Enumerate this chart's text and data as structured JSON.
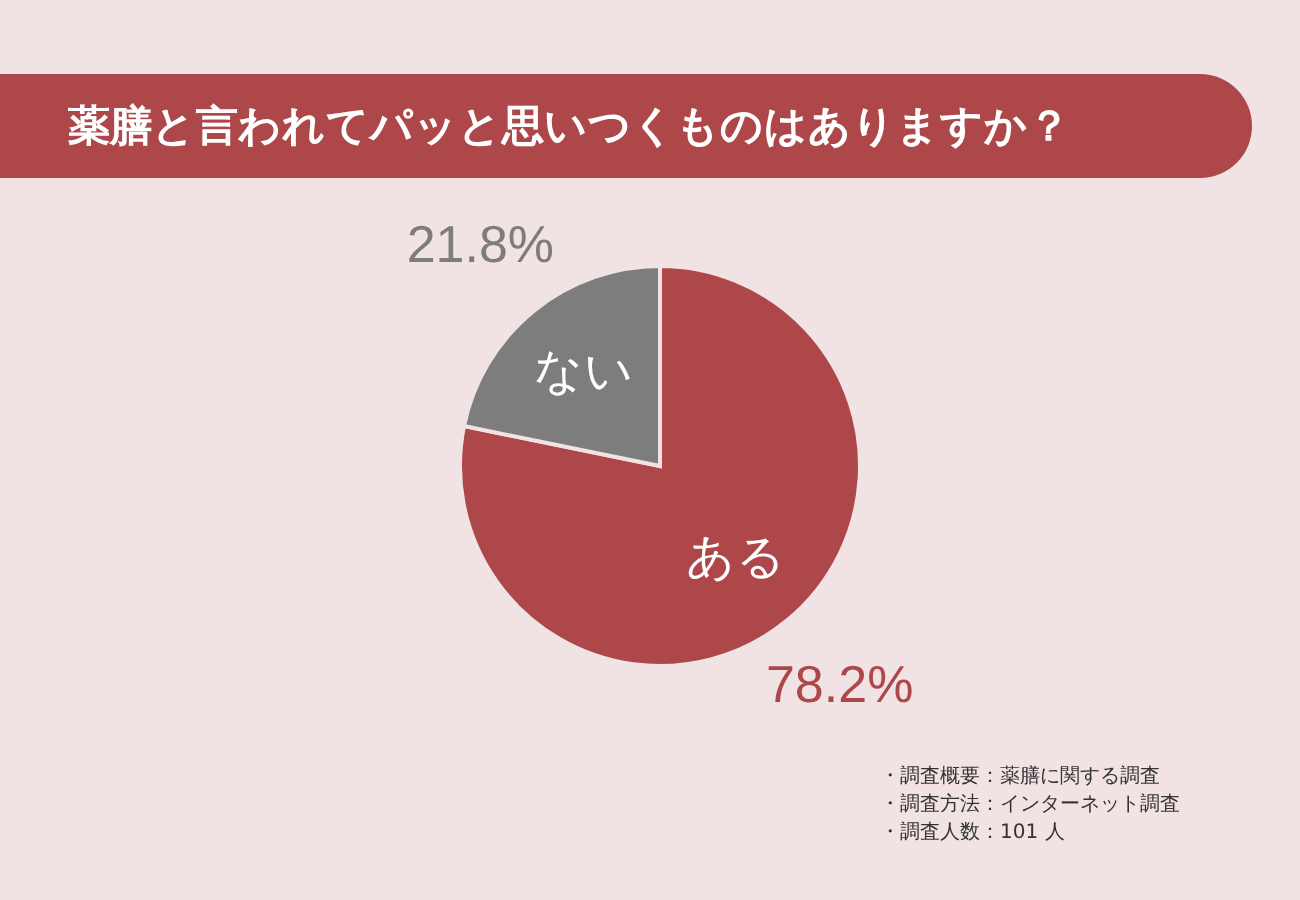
{
  "chart_data": {
    "type": "pie",
    "title": "薬膳と言われてパッと思いつくものはありますか？",
    "categories": [
      "ある",
      "ない"
    ],
    "values": [
      78.2,
      21.8
    ],
    "colors": [
      "#ad474a",
      "#7d7d7d"
    ],
    "value_labels": [
      "78.2%",
      "21.8%"
    ],
    "annotations": [
      "・調査概要：薬膳に関する調査",
      "・調査方法：インターネット調査",
      "・調査人数：101 人"
    ]
  }
}
